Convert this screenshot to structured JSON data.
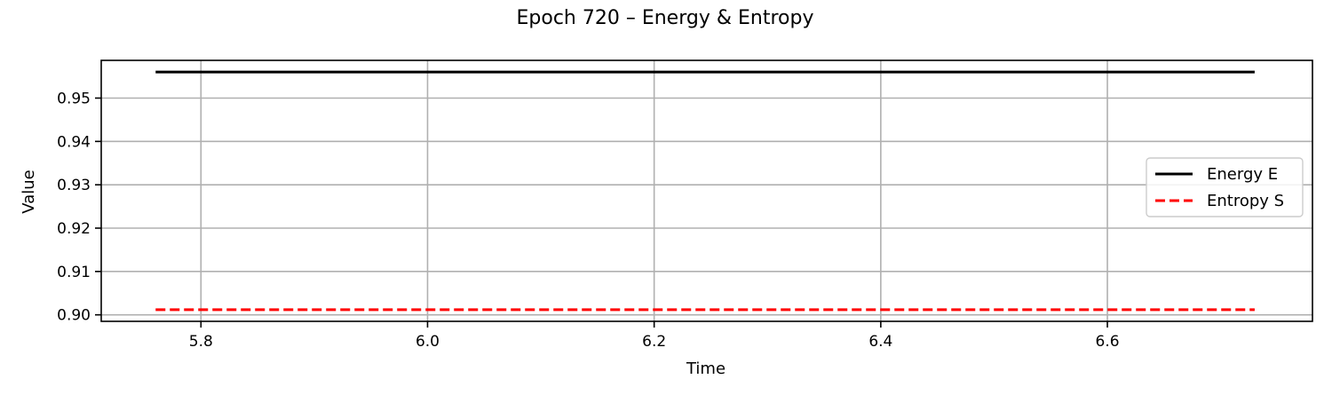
{
  "chart_data": {
    "type": "line",
    "title": "Epoch 720 – Energy & Entropy",
    "xlabel": "Time",
    "ylabel": "Value",
    "xlim": [
      5.712,
      6.781
    ],
    "ylim": [
      0.8985,
      0.9587
    ],
    "x_ticks": [
      5.8,
      6.0,
      6.2,
      6.4,
      6.6
    ],
    "x_tick_labels": [
      "5.8",
      "6.0",
      "6.2",
      "6.4",
      "6.6"
    ],
    "y_ticks": [
      0.9,
      0.91,
      0.92,
      0.93,
      0.94,
      0.95
    ],
    "y_tick_labels": [
      "0.90",
      "0.91",
      "0.92",
      "0.93",
      "0.94",
      "0.95"
    ],
    "grid": true,
    "legend_position": "center-right",
    "series": [
      {
        "name": "Energy E",
        "color": "#000000",
        "dash": "solid",
        "x": [
          5.76,
          6.73
        ],
        "y": [
          0.956,
          0.956
        ]
      },
      {
        "name": "Entropy S",
        "color": "#ff0000",
        "dash": "dashed",
        "x": [
          5.76,
          6.73
        ],
        "y": [
          0.9012,
          0.9012
        ]
      }
    ]
  }
}
